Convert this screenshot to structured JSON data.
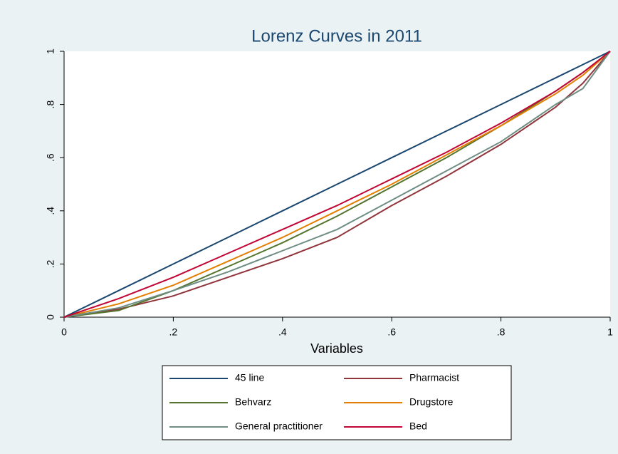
{
  "chart_data": {
    "type": "line",
    "title": "Lorenz Curves in 2011",
    "x_label": "Variables",
    "x": [
      0,
      0.1,
      0.2,
      0.3,
      0.4,
      0.5,
      0.6,
      0.7,
      0.8,
      0.9,
      0.95,
      1
    ],
    "series": [
      {
        "name": "45 line",
        "color": "#1a476f",
        "values": [
          0,
          0.1,
          0.2,
          0.3,
          0.4,
          0.5,
          0.6,
          0.7,
          0.8,
          0.9,
          0.95,
          1
        ]
      },
      {
        "name": "Pharmacist",
        "color": "#90353b",
        "values": [
          0,
          0.03,
          0.08,
          0.15,
          0.22,
          0.3,
          0.42,
          0.53,
          0.65,
          0.79,
          0.88,
          1
        ]
      },
      {
        "name": "Behvarz",
        "color": "#55752f",
        "values": [
          0,
          0.025,
          0.1,
          0.19,
          0.28,
          0.38,
          0.49,
          0.6,
          0.72,
          0.85,
          0.92,
          1
        ]
      },
      {
        "name": "Drugstore",
        "color": "#e37e00",
        "values": [
          0,
          0.05,
          0.12,
          0.21,
          0.3,
          0.4,
          0.5,
          0.61,
          0.72,
          0.84,
          0.91,
          1
        ]
      },
      {
        "name": "General practitioner",
        "color": "#6e8e84",
        "values": [
          0,
          0.035,
          0.1,
          0.17,
          0.25,
          0.33,
          0.44,
          0.55,
          0.66,
          0.8,
          0.86,
          1
        ]
      },
      {
        "name": "Bed",
        "color": "#c10534",
        "values": [
          0,
          0.07,
          0.15,
          0.24,
          0.33,
          0.42,
          0.52,
          0.62,
          0.73,
          0.85,
          0.92,
          1
        ]
      }
    ],
    "xlim": [
      0,
      1
    ],
    "ylim": [
      0,
      1
    ],
    "xticks": [
      0,
      {
        "value": 0.2,
        "label": ".2"
      },
      {
        "value": 0.4,
        "label": ".4"
      },
      {
        "value": 0.6,
        "label": ".6"
      },
      {
        "value": 0.8,
        "label": ".8"
      },
      1
    ],
    "yticks": [
      0,
      {
        "value": 0.2,
        "label": ".2"
      },
      {
        "value": 0.4,
        "label": ".4"
      },
      {
        "value": 0.6,
        "label": ".6"
      },
      {
        "value": 0.8,
        "label": ".8"
      },
      1
    ],
    "grid": false,
    "legend": "bottom"
  }
}
